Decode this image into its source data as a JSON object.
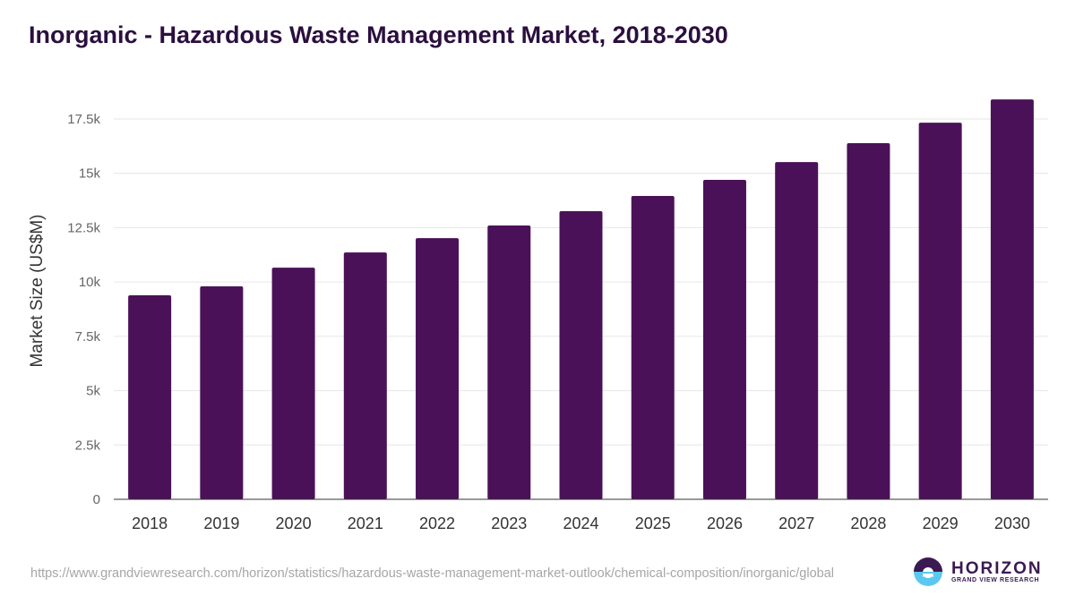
{
  "chart_data": {
    "type": "bar",
    "title": "Inorganic - Hazardous Waste Management Market, 2018-2030",
    "xlabel": "",
    "ylabel": "Market Size (US$M)",
    "categories": [
      "2018",
      "2019",
      "2020",
      "2021",
      "2022",
      "2023",
      "2024",
      "2025",
      "2026",
      "2027",
      "2028",
      "2029",
      "2030"
    ],
    "values": [
      9390,
      9800,
      10660,
      11360,
      12020,
      12600,
      13260,
      13960,
      14700,
      15520,
      16390,
      17330,
      18400
    ],
    "ylim": [
      0,
      17500
    ],
    "yticks": [
      0,
      2500,
      5000,
      7500,
      10000,
      12500,
      15000,
      17500
    ],
    "ytick_labels": [
      "0",
      "2.5k",
      "5k",
      "7.5k",
      "10k",
      "12.5k",
      "15k",
      "17.5k"
    ],
    "grid": true,
    "bar_color": "#4b1158"
  },
  "footer": {
    "url": "https://www.grandviewresearch.com/horizon/statistics/hazardous-waste-management-market-outlook/chemical-composition/inorganic/global",
    "logo_main": "HORIZON",
    "logo_sub": "GRAND VIEW RESEARCH"
  }
}
